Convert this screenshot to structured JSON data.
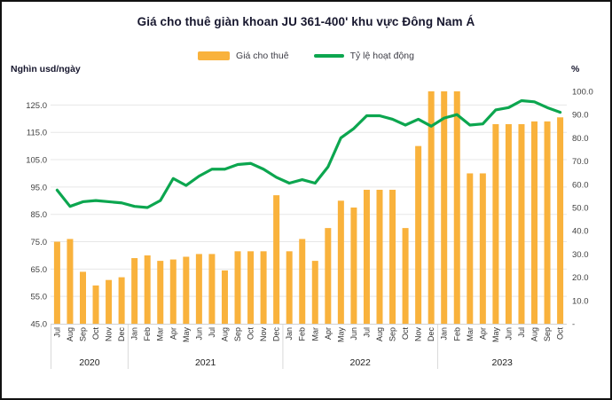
{
  "title": "Giá cho thuê giàn khoan JU 361-400' khu vực Đông Nam Á",
  "axis_captions": {
    "left": "Nghìn usd/ngày",
    "right": "%"
  },
  "legend": {
    "bar_label": "Giá cho thuê",
    "line_label": "Tỷ lệ hoạt động"
  },
  "colors": {
    "bar": "#F9B23C",
    "line": "#0CA64F"
  },
  "chart_data": {
    "type": "bar+line",
    "title": "Giá cho thuê giàn khoan JU 361-400' khu vực Đông Nam Á",
    "legend_position": "top",
    "grid": true,
    "categories": [
      "Jul",
      "Aug",
      "Sep",
      "Oct",
      "Nov",
      "Dec",
      "Jan",
      "Feb",
      "Mar",
      "Apr",
      "May",
      "Jun",
      "Jul",
      "Aug",
      "Sep",
      "Oct",
      "Nov",
      "Dec",
      "Jan",
      "Feb",
      "Mar",
      "Apr",
      "May",
      "Jun",
      "Jul",
      "Aug",
      "Sep",
      "Oct",
      "Nov",
      "Dec",
      "Jan",
      "Feb",
      "Mar",
      "Apr",
      "May",
      "Jun",
      "Jul",
      "Aug",
      "Sep",
      "Oct"
    ],
    "year_groups": [
      {
        "label": "2020",
        "months": 6
      },
      {
        "label": "2021",
        "months": 12
      },
      {
        "label": "2022",
        "months": 12
      },
      {
        "label": "2023",
        "months": 10
      }
    ],
    "series": [
      {
        "name": "Giá cho thuê",
        "type": "bar",
        "axis": "left",
        "unit": "nghìn usd/ngày",
        "values": [
          75,
          76,
          64,
          59,
          61,
          62,
          69,
          70,
          68,
          68.5,
          69.5,
          70.5,
          70.5,
          64.5,
          71.5,
          71.5,
          71.5,
          92,
          71.5,
          76,
          68,
          80,
          90,
          87.5,
          94,
          94,
          94,
          80,
          110,
          130,
          130,
          130,
          100,
          100,
          118,
          118,
          118,
          119,
          119,
          120.5
        ]
      },
      {
        "name": "Tỷ lệ hoạt động",
        "type": "line",
        "axis": "right",
        "unit": "%",
        "values": [
          57.5,
          50.5,
          52.5,
          53,
          52.5,
          52,
          50.5,
          50,
          53,
          62.5,
          59.5,
          63.5,
          66.5,
          66.5,
          68.5,
          69,
          66.5,
          63,
          60.5,
          62,
          60.5,
          67.5,
          80,
          84,
          89.5,
          89.5,
          88,
          85.5,
          88,
          85,
          88.5,
          90,
          85.5,
          86,
          92,
          93,
          96,
          95.5,
          93,
          91
        ]
      }
    ],
    "left_axis": {
      "caption": "Nghìn usd/ngày",
      "min": 45,
      "max": 130,
      "ticks": [
        {
          "value": 125,
          "label": "125.0"
        },
        {
          "value": 115,
          "label": "115.0"
        },
        {
          "value": 105,
          "label": "105.0"
        },
        {
          "value": 95,
          "label": "95.0"
        },
        {
          "value": 85,
          "label": "85.0"
        },
        {
          "value": 75,
          "label": "75.0"
        },
        {
          "value": 65,
          "label": "65.0"
        },
        {
          "value": 55,
          "label": "55.0"
        },
        {
          "value": 45,
          "label": "45.0"
        }
      ]
    },
    "right_axis": {
      "caption": "%",
      "min": 0,
      "max": 100,
      "ticks": [
        {
          "value": 100,
          "label": "100.0"
        },
        {
          "value": 90,
          "label": "90.0"
        },
        {
          "value": 80,
          "label": "80.0"
        },
        {
          "value": 70,
          "label": "70.0"
        },
        {
          "value": 60,
          "label": "60.0"
        },
        {
          "value": 50,
          "label": "50.0"
        },
        {
          "value": 40,
          "label": "40.0"
        },
        {
          "value": 30,
          "label": "30.0"
        },
        {
          "value": 20,
          "label": "20.0"
        },
        {
          "value": 10,
          "label": "10.0"
        },
        {
          "value": 0,
          "label": "-"
        }
      ]
    }
  }
}
